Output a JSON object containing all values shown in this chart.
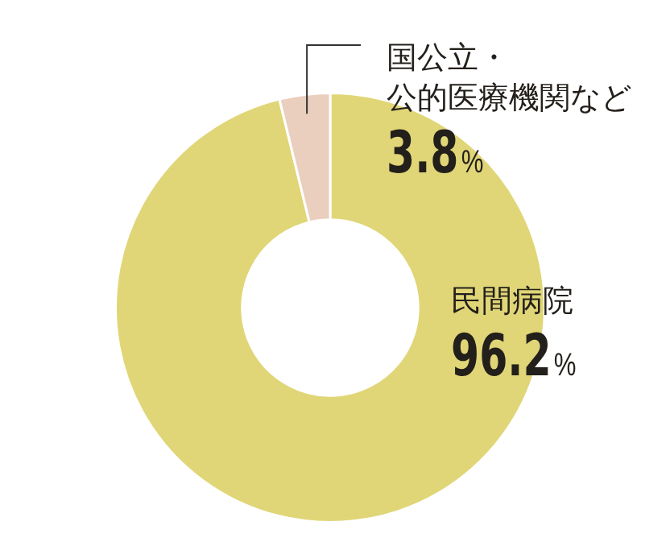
{
  "chart_data": {
    "type": "donut",
    "categories": [
      "民間病院",
      "国公立・公的医療機関など"
    ],
    "values": [
      96.2,
      3.8
    ],
    "colors": [
      "#e0d677",
      "#eacfbe"
    ],
    "value_labels": [
      "96.2%",
      "3.8%"
    ],
    "legend": false
  }
}
